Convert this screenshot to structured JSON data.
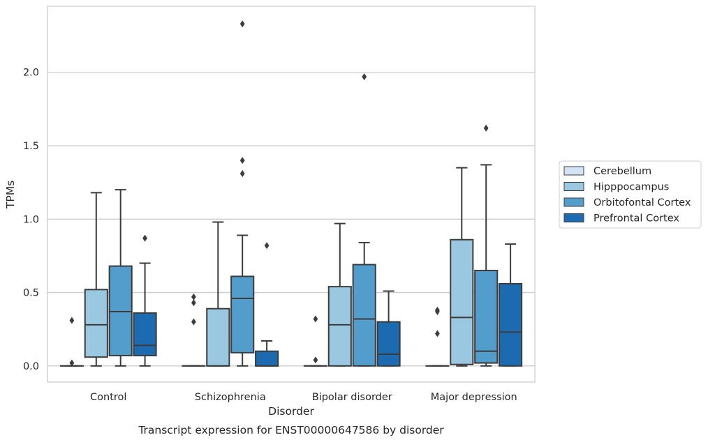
{
  "chart_data": {
    "type": "boxplot",
    "xlabel": "Disorder",
    "ylabel": "TPMs",
    "caption": "Transcript expression for ENST00000647586 by disorder",
    "ylim": [
      -0.11,
      2.45
    ],
    "yticks": [
      "0.0",
      "0.5",
      "1.0",
      "1.5",
      "2.0"
    ],
    "grid": true,
    "legend_position": "right",
    "categories": [
      "Control",
      "Schizophrenia",
      "Bipolar disorder",
      "Major depression"
    ],
    "series": [
      {
        "name": "Cerebellum",
        "color": "#d2e3f3",
        "boxes": [
          {
            "whislo": 0,
            "q1": 0,
            "med": 0,
            "q3": 0,
            "whishi": 0,
            "fliers": [
              0.02,
              0.31
            ]
          },
          {
            "whislo": 0,
            "q1": 0,
            "med": 0,
            "q3": 0,
            "whishi": 0,
            "fliers": [
              0.3,
              0.43,
              0.47
            ]
          },
          {
            "whislo": 0,
            "q1": 0,
            "med": 0,
            "q3": 0,
            "whishi": 0,
            "fliers": [
              0.04,
              0.32
            ]
          },
          {
            "whislo": 0,
            "q1": 0,
            "med": 0,
            "q3": 0,
            "whishi": 0,
            "fliers": [
              0.22,
              0.37,
              0.38
            ]
          }
        ]
      },
      {
        "name": "Hipppocampus",
        "color": "#9ac8e0",
        "boxes": [
          {
            "whislo": 0,
            "q1": 0.06,
            "med": 0.28,
            "q3": 0.52,
            "whishi": 1.18,
            "fliers": []
          },
          {
            "whislo": 0,
            "q1": 0,
            "med": 0,
            "q3": 0.39,
            "whishi": 0.98,
            "fliers": []
          },
          {
            "whislo": 0,
            "q1": 0,
            "med": 0.28,
            "q3": 0.54,
            "whishi": 0.97,
            "fliers": []
          },
          {
            "whislo": 0,
            "q1": 0.01,
            "med": 0.33,
            "q3": 0.86,
            "whishi": 1.35,
            "fliers": []
          }
        ]
      },
      {
        "name": "Orbitofontal Cortex",
        "color": "#529dcc",
        "boxes": [
          {
            "whislo": 0,
            "q1": 0.07,
            "med": 0.37,
            "q3": 0.68,
            "whishi": 1.2,
            "fliers": []
          },
          {
            "whislo": 0,
            "q1": 0.09,
            "med": 0.46,
            "q3": 0.61,
            "whishi": 0.89,
            "fliers": [
              1.31,
              1.4,
              2.33
            ]
          },
          {
            "whislo": 0,
            "q1": 0,
            "med": 0.32,
            "q3": 0.69,
            "whishi": 0.84,
            "fliers": [
              1.97
            ]
          },
          {
            "whislo": 0,
            "q1": 0.02,
            "med": 0.1,
            "q3": 0.65,
            "whishi": 1.37,
            "fliers": [
              1.62
            ]
          }
        ]
      },
      {
        "name": "Prefrontal Cortex",
        "color": "#1c6aaf",
        "boxes": [
          {
            "whislo": 0,
            "q1": 0.07,
            "med": 0.14,
            "q3": 0.36,
            "whishi": 0.7,
            "fliers": [
              0.87
            ]
          },
          {
            "whislo": 0,
            "q1": 0,
            "med": 0,
            "q3": 0.1,
            "whishi": 0.17,
            "fliers": [
              0.82
            ]
          },
          {
            "whislo": 0,
            "q1": 0,
            "med": 0.08,
            "q3": 0.3,
            "whishi": 0.51,
            "fliers": []
          },
          {
            "whislo": 0,
            "q1": 0,
            "med": 0.23,
            "q3": 0.56,
            "whishi": 0.83,
            "fliers": []
          }
        ]
      }
    ]
  }
}
